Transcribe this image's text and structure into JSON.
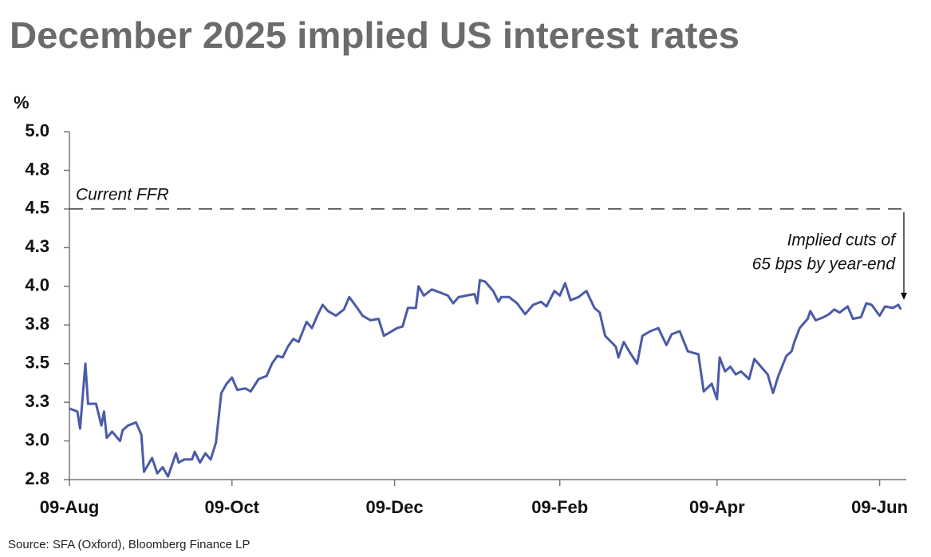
{
  "chart_data": {
    "type": "line",
    "title": "December 2025 implied US interest rates",
    "y_label": "%",
    "source": "Source: SFA (Oxford), Bloomberg Finance LP",
    "color": "#4a5ba8",
    "reference_line": {
      "value": 4.5,
      "label": "Current FFR"
    },
    "annotation": [
      "Implied cuts of",
      "65 bps by year-end"
    ],
    "xlim": [
      0,
      314
    ],
    "xticks": [
      {
        "value": 0,
        "label": "09-Aug"
      },
      {
        "value": 61,
        "label": "09-Oct"
      },
      {
        "value": 122,
        "label": "09-Dec"
      },
      {
        "value": 184,
        "label": "09-Feb"
      },
      {
        "value": 243,
        "label": "09-Apr"
      },
      {
        "value": 304,
        "label": "09-Jun"
      }
    ],
    "ylim": [
      2.75,
      5.0
    ],
    "yticks": [
      {
        "value": 2.75,
        "label": "2.8"
      },
      {
        "value": 3.0,
        "label": "3.0"
      },
      {
        "value": 3.25,
        "label": "3.3"
      },
      3.5,
      {
        "value": 3.75,
        "label": "3.8"
      },
      {
        "value": 4.0,
        "label": "4.0"
      },
      {
        "value": 4.25,
        "label": "4.3"
      },
      4.5,
      {
        "value": 4.75,
        "label": "4.8"
      },
      {
        "value": 5.0,
        "label": "5.0"
      }
    ],
    "x": [
      0,
      3,
      4,
      6,
      7,
      10,
      12,
      13,
      14,
      16,
      19,
      20,
      22,
      25,
      27,
      28,
      31,
      33,
      35,
      37,
      40,
      41,
      43,
      46,
      47,
      49,
      51,
      53,
      55,
      57,
      59,
      61,
      63,
      66,
      68,
      71,
      74,
      76,
      78,
      80,
      82,
      84,
      86,
      89,
      91,
      93,
      95,
      97,
      100,
      103,
      105,
      108,
      110,
      113,
      116,
      118,
      120,
      123,
      125,
      127,
      130,
      131,
      133,
      136,
      139,
      142,
      144,
      146,
      149,
      152,
      153,
      154,
      156,
      159,
      161,
      162,
      165,
      168,
      171,
      174,
      177,
      179,
      182,
      184,
      186,
      188,
      191,
      194,
      197,
      199,
      201,
      205,
      206,
      208,
      210,
      213,
      215,
      218,
      221,
      224,
      226,
      229,
      232,
      236,
      238,
      241,
      243,
      244,
      246,
      248,
      250,
      252,
      255,
      257,
      260,
      262,
      264,
      266,
      269,
      271,
      272,
      274,
      277,
      278,
      280,
      283,
      285,
      287,
      289,
      292,
      294,
      297,
      299,
      301,
      304,
      306,
      309,
      311,
      312
    ],
    "values": [
      3.21,
      3.19,
      3.08,
      3.5,
      3.24,
      3.24,
      3.1,
      3.19,
      3.02,
      3.06,
      3.0,
      3.07,
      3.1,
      3.12,
      3.04,
      2.8,
      2.89,
      2.79,
      2.83,
      2.77,
      2.92,
      2.86,
      2.88,
      2.88,
      2.93,
      2.86,
      2.92,
      2.88,
      2.99,
      3.31,
      3.37,
      3.41,
      3.33,
      3.34,
      3.32,
      3.4,
      3.42,
      3.5,
      3.55,
      3.54,
      3.61,
      3.66,
      3.64,
      3.77,
      3.73,
      3.81,
      3.88,
      3.84,
      3.81,
      3.85,
      3.93,
      3.86,
      3.81,
      3.78,
      3.79,
      3.68,
      3.7,
      3.73,
      3.74,
      3.86,
      3.86,
      4.0,
      3.94,
      3.98,
      3.96,
      3.94,
      3.89,
      3.93,
      3.94,
      3.95,
      3.89,
      4.04,
      4.03,
      3.97,
      3.9,
      3.93,
      3.93,
      3.89,
      3.82,
      3.88,
      3.9,
      3.87,
      3.97,
      3.94,
      4.02,
      3.91,
      3.93,
      3.97,
      3.86,
      3.83,
      3.68,
      3.61,
      3.54,
      3.64,
      3.58,
      3.5,
      3.68,
      3.71,
      3.73,
      3.62,
      3.69,
      3.71,
      3.58,
      3.56,
      3.32,
      3.37,
      3.27,
      3.54,
      3.45,
      3.48,
      3.43,
      3.45,
      3.4,
      3.53,
      3.47,
      3.43,
      3.31,
      3.42,
      3.55,
      3.58,
      3.64,
      3.73,
      3.79,
      3.84,
      3.78,
      3.8,
      3.82,
      3.85,
      3.83,
      3.87,
      3.79,
      3.8,
      3.89,
      3.88,
      3.81,
      3.87,
      3.86,
      3.88,
      3.85
    ]
  }
}
